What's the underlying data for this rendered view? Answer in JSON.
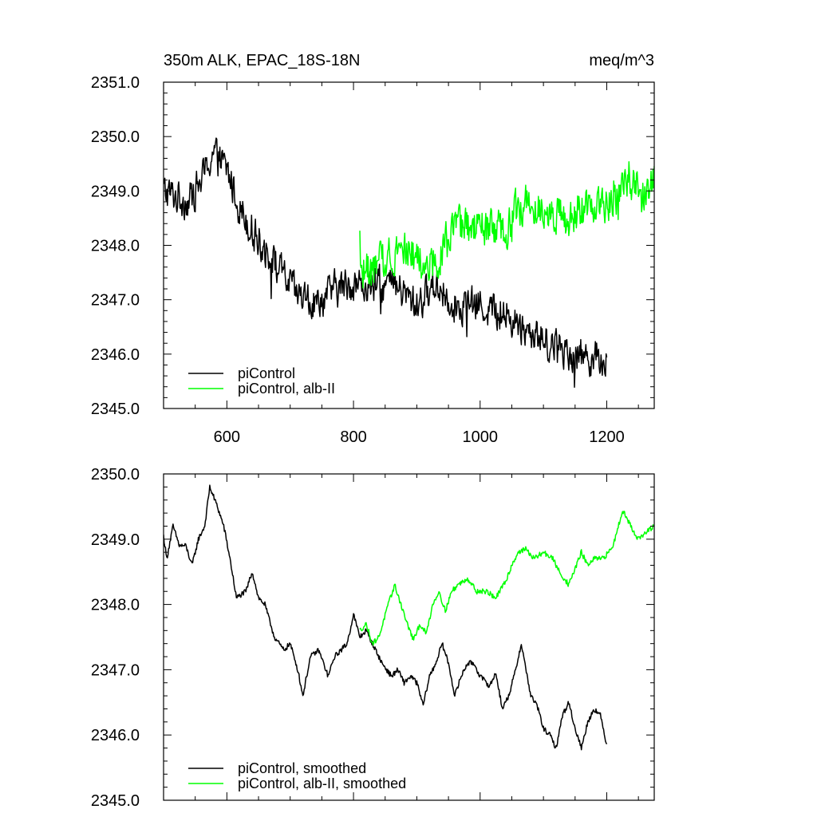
{
  "colors": {
    "control": "#000000",
    "albII": "#00ff00",
    "axis": "#000000",
    "background": "#ffffff"
  },
  "chart_data": [
    {
      "type": "line",
      "title": "350m ALK, EPAC_18S-18N",
      "units": "meq/m^3",
      "xlim": [
        500,
        1275
      ],
      "ylim": [
        2345.0,
        2351.0
      ],
      "x_ticks": [
        "600",
        "800",
        "1000",
        "1200"
      ],
      "y_ticks": [
        "2345.0",
        "2346.0",
        "2347.0",
        "2348.0",
        "2349.0",
        "2350.0",
        "2351.0"
      ],
      "legend_position": "bottom-left",
      "grid": false,
      "series": [
        {
          "name": "piControl",
          "color": "#000000",
          "x_range": [
            500,
            1200
          ],
          "trend": [
            [
              500,
              2349.0
            ],
            [
              540,
              2348.8
            ],
            [
              560,
              2349.2
            ],
            [
              578,
              2349.7
            ],
            [
              600,
              2349.4
            ],
            [
              620,
              2348.7
            ],
            [
              650,
              2348.1
            ],
            [
              680,
              2347.6
            ],
            [
              710,
              2347.1
            ],
            [
              740,
              2346.9
            ],
            [
              770,
              2347.2
            ],
            [
              800,
              2347.3
            ],
            [
              830,
              2347.2
            ],
            [
              860,
              2347.3
            ],
            [
              900,
              2346.9
            ],
            [
              930,
              2347.3
            ],
            [
              960,
              2346.9
            ],
            [
              1000,
              2346.9
            ],
            [
              1040,
              2346.7
            ],
            [
              1080,
              2346.4
            ],
            [
              1110,
              2346.2
            ],
            [
              1150,
              2346.0
            ],
            [
              1200,
              2345.9
            ]
          ],
          "noise_amplitude": 0.45,
          "min": 2345.2,
          "max": 2350.35
        },
        {
          "name": "piControl, alb-II",
          "color": "#00ff00",
          "x_range": [
            810,
            1275
          ],
          "trend": [
            [
              810,
              2347.6
            ],
            [
              830,
              2347.5
            ],
            [
              860,
              2347.9
            ],
            [
              880,
              2348.0
            ],
            [
              900,
              2347.7
            ],
            [
              920,
              2347.6
            ],
            [
              940,
              2347.9
            ],
            [
              960,
              2348.3
            ],
            [
              1000,
              2348.3
            ],
            [
              1040,
              2348.2
            ],
            [
              1060,
              2348.7
            ],
            [
              1080,
              2348.8
            ],
            [
              1110,
              2348.7
            ],
            [
              1140,
              2348.4
            ],
            [
              1170,
              2348.7
            ],
            [
              1200,
              2348.8
            ],
            [
              1230,
              2349.1
            ],
            [
              1260,
              2349.0
            ],
            [
              1275,
              2349.2
            ]
          ],
          "noise_amplitude": 0.5,
          "min": 2346.5,
          "max": 2350.1
        }
      ]
    },
    {
      "type": "line",
      "xlim": [
        500,
        1275
      ],
      "ylim": [
        2345.0,
        2350.0
      ],
      "y_ticks": [
        "2345.0",
        "2346.0",
        "2347.0",
        "2348.0",
        "2349.0",
        "2350.0"
      ],
      "legend_position": "bottom-left",
      "grid": false,
      "series": [
        {
          "name": "piControl, smoothed",
          "color": "#000000",
          "x_range": [
            500,
            1200
          ],
          "trend": [
            [
              500,
              2349.05
            ],
            [
              505,
              2348.7
            ],
            [
              515,
              2349.2
            ],
            [
              525,
              2348.9
            ],
            [
              535,
              2348.9
            ],
            [
              545,
              2348.6
            ],
            [
              555,
              2349.0
            ],
            [
              565,
              2349.2
            ],
            [
              573,
              2349.8
            ],
            [
              585,
              2349.5
            ],
            [
              595,
              2349.2
            ],
            [
              605,
              2348.7
            ],
            [
              615,
              2348.1
            ],
            [
              630,
              2348.2
            ],
            [
              640,
              2348.5
            ],
            [
              650,
              2348.1
            ],
            [
              660,
              2348.0
            ],
            [
              675,
              2347.5
            ],
            [
              690,
              2347.3
            ],
            [
              700,
              2347.4
            ],
            [
              712,
              2347.0
            ],
            [
              720,
              2346.6
            ],
            [
              732,
              2347.2
            ],
            [
              745,
              2347.3
            ],
            [
              760,
              2346.9
            ],
            [
              770,
              2347.2
            ],
            [
              780,
              2347.3
            ],
            [
              790,
              2347.4
            ],
            [
              800,
              2347.85
            ],
            [
              810,
              2347.5
            ],
            [
              820,
              2347.6
            ],
            [
              835,
              2347.3
            ],
            [
              845,
              2347.1
            ],
            [
              860,
              2346.9
            ],
            [
              870,
              2347.0
            ],
            [
              880,
              2346.8
            ],
            [
              890,
              2346.9
            ],
            [
              900,
              2346.8
            ],
            [
              910,
              2346.45
            ],
            [
              920,
              2346.9
            ],
            [
              930,
              2347.1
            ],
            [
              940,
              2347.4
            ],
            [
              950,
              2347.1
            ],
            [
              960,
              2346.6
            ],
            [
              970,
              2346.9
            ],
            [
              980,
              2347.1
            ],
            [
              990,
              2347.1
            ],
            [
              1000,
              2346.9
            ],
            [
              1015,
              2346.75
            ],
            [
              1025,
              2346.95
            ],
            [
              1035,
              2346.4
            ],
            [
              1045,
              2346.6
            ],
            [
              1055,
              2346.95
            ],
            [
              1065,
              2347.4
            ],
            [
              1080,
              2346.6
            ],
            [
              1090,
              2346.45
            ],
            [
              1100,
              2346.1
            ],
            [
              1110,
              2346.0
            ],
            [
              1120,
              2345.8
            ],
            [
              1130,
              2346.3
            ],
            [
              1140,
              2346.5
            ],
            [
              1150,
              2346.1
            ],
            [
              1160,
              2345.8
            ],
            [
              1170,
              2346.2
            ],
            [
              1180,
              2346.4
            ],
            [
              1190,
              2346.3
            ],
            [
              1200,
              2345.85
            ]
          ]
        },
        {
          "name": "piControl, alb-II, smoothed",
          "color": "#00ff00",
          "x_range": [
            810,
            1275
          ],
          "trend": [
            [
              810,
              2347.6
            ],
            [
              820,
              2347.7
            ],
            [
              830,
              2347.4
            ],
            [
              840,
              2347.5
            ],
            [
              855,
              2348.0
            ],
            [
              865,
              2348.3
            ],
            [
              875,
              2348.0
            ],
            [
              885,
              2347.7
            ],
            [
              895,
              2347.45
            ],
            [
              905,
              2347.7
            ],
            [
              915,
              2347.55
            ],
            [
              925,
              2348.0
            ],
            [
              935,
              2348.2
            ],
            [
              945,
              2347.9
            ],
            [
              955,
              2348.2
            ],
            [
              965,
              2348.3
            ],
            [
              980,
              2348.4
            ],
            [
              995,
              2348.2
            ],
            [
              1010,
              2348.2
            ],
            [
              1025,
              2348.1
            ],
            [
              1040,
              2348.35
            ],
            [
              1050,
              2348.6
            ],
            [
              1060,
              2348.8
            ],
            [
              1072,
              2348.85
            ],
            [
              1085,
              2348.7
            ],
            [
              1100,
              2348.8
            ],
            [
              1115,
              2348.7
            ],
            [
              1125,
              2348.5
            ],
            [
              1140,
              2348.3
            ],
            [
              1150,
              2348.55
            ],
            [
              1160,
              2348.8
            ],
            [
              1170,
              2348.6
            ],
            [
              1180,
              2348.7
            ],
            [
              1195,
              2348.7
            ],
            [
              1210,
              2348.9
            ],
            [
              1225,
              2349.45
            ],
            [
              1238,
              2349.2
            ],
            [
              1250,
              2349.0
            ],
            [
              1262,
              2349.1
            ],
            [
              1275,
              2349.2
            ]
          ]
        }
      ]
    }
  ]
}
